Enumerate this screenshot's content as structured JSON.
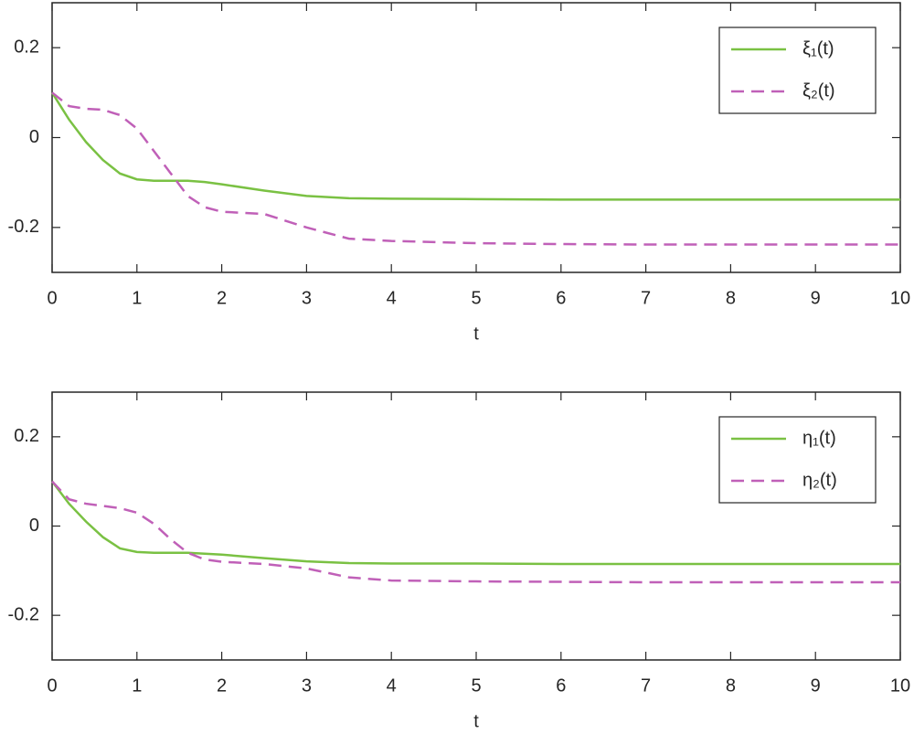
{
  "chart_data": [
    {
      "type": "line",
      "xlabel": "t",
      "x": [
        0,
        0.2,
        0.4,
        0.6,
        0.8,
        1.0,
        1.2,
        1.4,
        1.6,
        1.8,
        2.0,
        2.5,
        3,
        3.5,
        4,
        5,
        6,
        7,
        8,
        9,
        10
      ],
      "series": [
        {
          "name": "ξ₁(t)",
          "color": "#7ac143",
          "linestyle": "solid",
          "values": [
            0.1,
            0.04,
            -0.01,
            -0.05,
            -0.08,
            -0.093,
            -0.096,
            -0.096,
            -0.096,
            -0.099,
            -0.104,
            -0.118,
            -0.13,
            -0.135,
            -0.136,
            -0.137,
            -0.138,
            -0.138,
            -0.138,
            -0.138,
            -0.138
          ]
        },
        {
          "name": "ξ₂(t)",
          "color": "#c060b8",
          "linestyle": "dashed",
          "values": [
            0.1,
            0.07,
            0.064,
            0.062,
            0.05,
            0.02,
            -0.03,
            -0.08,
            -0.13,
            -0.155,
            -0.165,
            -0.17,
            -0.2,
            -0.225,
            -0.23,
            -0.235,
            -0.237,
            -0.238,
            -0.238,
            -0.238,
            -0.238
          ]
        }
      ],
      "xlim": [
        0,
        10
      ],
      "xticks": [
        0,
        1,
        2,
        3,
        4,
        5,
        6,
        7,
        8,
        9,
        10
      ],
      "ylim": [
        -0.3,
        0.3
      ],
      "yticks": [
        -0.2,
        0,
        0.2
      ],
      "legend": "upper right"
    },
    {
      "type": "line",
      "xlabel": "t",
      "x": [
        0,
        0.2,
        0.4,
        0.6,
        0.8,
        1.0,
        1.2,
        1.4,
        1.6,
        1.8,
        2.0,
        2.5,
        3,
        3.5,
        4,
        5,
        6,
        7,
        8,
        9,
        10
      ],
      "series": [
        {
          "name": "η₁(t)",
          "color": "#7ac143",
          "linestyle": "solid",
          "values": [
            0.1,
            0.05,
            0.01,
            -0.025,
            -0.05,
            -0.058,
            -0.06,
            -0.06,
            -0.06,
            -0.062,
            -0.064,
            -0.072,
            -0.079,
            -0.083,
            -0.084,
            -0.084,
            -0.085,
            -0.085,
            -0.085,
            -0.085,
            -0.085
          ]
        },
        {
          "name": "η₂(t)",
          "color": "#c060b8",
          "linestyle": "dashed",
          "values": [
            0.1,
            0.06,
            0.05,
            0.045,
            0.04,
            0.03,
            0.005,
            -0.03,
            -0.06,
            -0.075,
            -0.08,
            -0.085,
            -0.095,
            -0.115,
            -0.122,
            -0.124,
            -0.125,
            -0.126,
            -0.126,
            -0.126,
            -0.126
          ]
        }
      ],
      "xlim": [
        0,
        10
      ],
      "xticks": [
        0,
        1,
        2,
        3,
        4,
        5,
        6,
        7,
        8,
        9,
        10
      ],
      "ylim": [
        -0.3,
        0.3
      ],
      "yticks": [
        -0.2,
        0,
        0.2
      ],
      "legend": "upper right"
    }
  ]
}
